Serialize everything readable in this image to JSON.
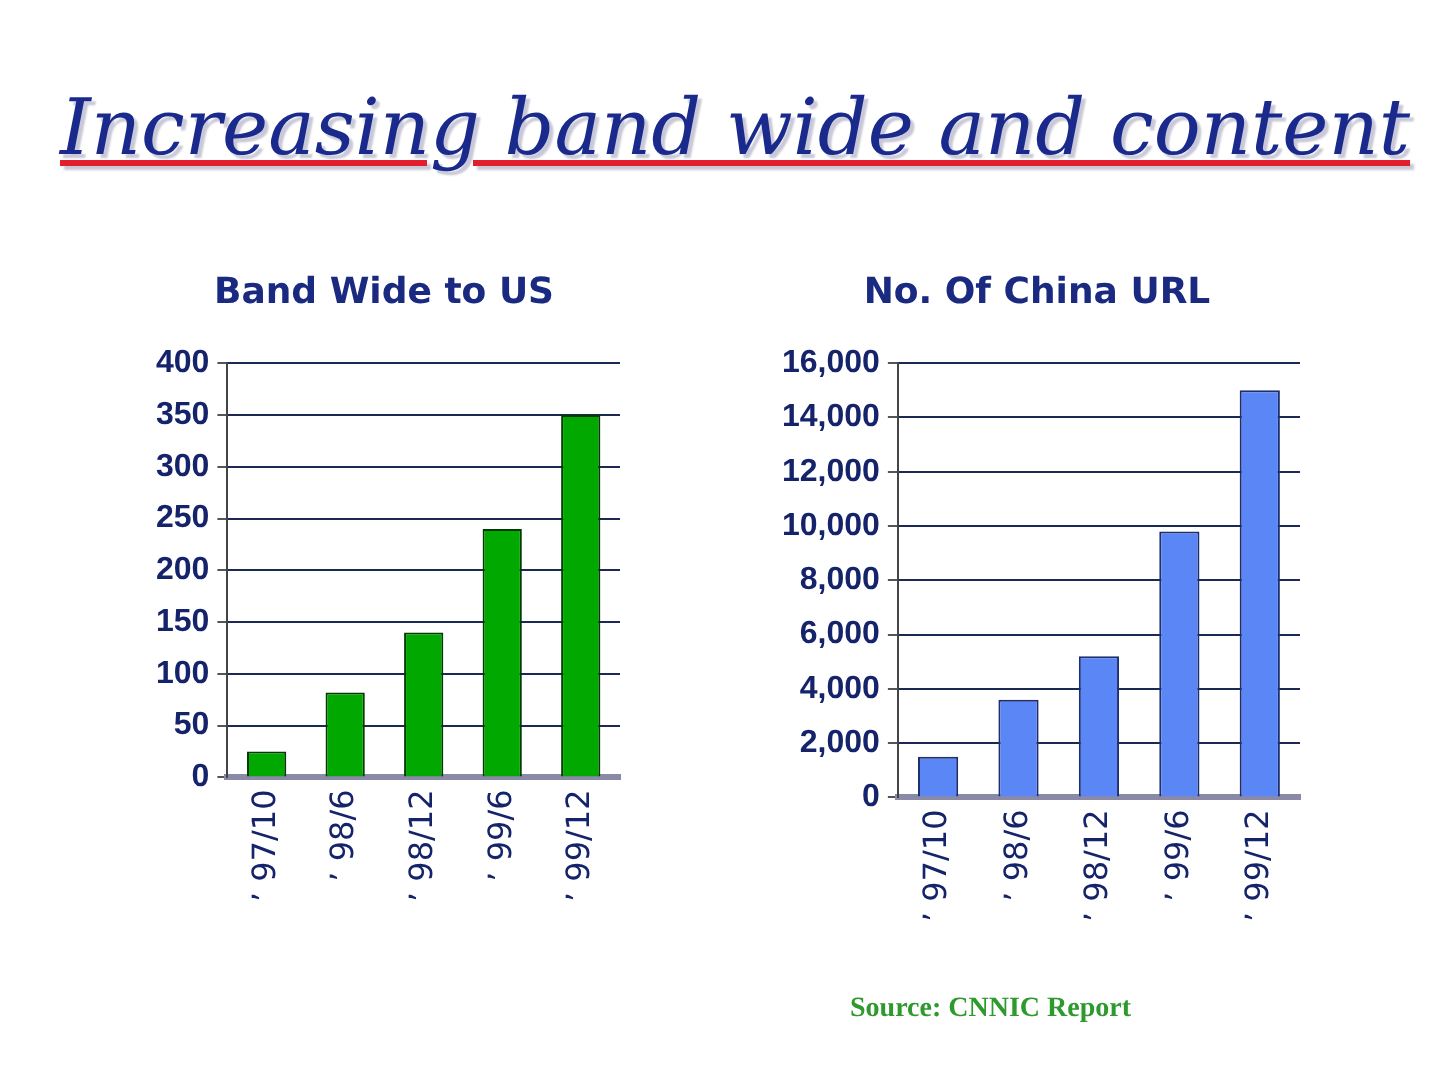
{
  "chart_data": [
    {
      "type": "other",
      "title": "Increasing band wide and content"
    },
    {
      "type": "bar",
      "title": "Band Wide to US",
      "categories": [
        "’ 97/10",
        "’ 98/6",
        "’ 98/12",
        "’ 99/6",
        "’ 99/12"
      ],
      "values": [
        25,
        82,
        140,
        240,
        350
      ],
      "color": "#00a800",
      "ylim": [
        0,
        400
      ],
      "yticks": [
        0,
        50,
        100,
        150,
        200,
        250,
        300,
        350,
        400
      ],
      "grid": "y"
    },
    {
      "type": "bar",
      "title": "No. Of China URL",
      "categories": [
        "’ 97/10",
        "’ 98/6",
        "’ 98/12",
        "’ 99/6",
        "’ 99/12"
      ],
      "values": [
        1500,
        3600,
        5200,
        9800,
        15000
      ],
      "color": "#5a87f5",
      "ylim": [
        0,
        16000
      ],
      "yticks": [
        0,
        {
          "value": 2000,
          "label": "2,000"
        },
        {
          "value": 4000,
          "label": "4,000"
        },
        {
          "value": 6000,
          "label": "6,000"
        },
        {
          "value": 8000,
          "label": "8,000"
        },
        {
          "value": 10000,
          "label": "10,000"
        },
        {
          "value": 12000,
          "label": "12,000"
        },
        {
          "value": 14000,
          "label": "14,000"
        },
        {
          "value": 16000,
          "label": "16,000"
        }
      ],
      "grid": "y",
      "annotations": [
        "Source: CNNIC Report"
      ]
    }
  ]
}
